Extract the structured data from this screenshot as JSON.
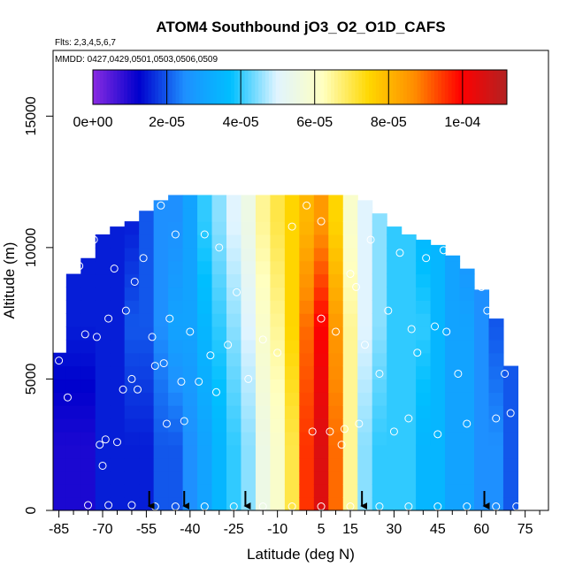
{
  "chart_data": {
    "type": "heatmap",
    "title": "ATOM4 Southbound jO3_O2_O1D_CAFS",
    "subtitle_flights": "Flts: 2,3,4,5,6,7",
    "subtitle_dates": "MMDD: 0427,0429,0501,0503,0506,0509",
    "xlabel": "Latitude (deg N)",
    "ylabel": "Altitude (m)",
    "xlim": [
      -87,
      83
    ],
    "ylim": [
      0,
      17500
    ],
    "x_ticks": [
      -85,
      -70,
      -55,
      -40,
      -25,
      -10,
      5,
      15,
      30,
      45,
      60,
      75
    ],
    "x_tick_labels": [
      "-85",
      "-70",
      "-55",
      "-40",
      "-25",
      "-10",
      "5",
      "15",
      "30",
      "45",
      "60",
      "75"
    ],
    "x_minor_ticks": [
      -80,
      -75,
      -65,
      -60,
      -50,
      -45,
      -35,
      -30,
      -20,
      -15,
      -5,
      0,
      10,
      20,
      25,
      35,
      40,
      50,
      55,
      65,
      70,
      80
    ],
    "y_ticks": [
      0,
      5000,
      10000,
      15000
    ],
    "y_tick_labels": [
      "0",
      "5000",
      "10000",
      "15000"
    ],
    "colorbar": {
      "min": 0,
      "max": 0.000112,
      "tick_values": [
        0,
        2e-05,
        4e-05,
        6e-05,
        8e-05,
        0.0001
      ],
      "tick_labels": [
        "0e+00",
        "2e-05",
        "4e-05",
        "6e-05",
        "8e-05",
        "1e-04"
      ],
      "colors": [
        "#8a2be2",
        "#0000cd",
        "#1e90ff",
        "#00bfff",
        "#e0f4ff",
        "#ffffc0",
        "#ffd700",
        "#ff8c00",
        "#ff0000",
        "#b22222"
      ]
    },
    "field": {
      "lat_columns": [
        -85,
        -80,
        -75,
        -70,
        -65,
        -60,
        -55,
        -50,
        -45,
        -40,
        -35,
        -30,
        -25,
        -20,
        -15,
        -10,
        -5,
        0,
        5,
        10,
        15,
        20,
        25,
        30,
        35,
        40,
        45,
        50,
        55,
        60,
        65,
        70
      ],
      "top_altitude_m": [
        6000,
        9000,
        9600,
        10500,
        10800,
        11000,
        11400,
        11800,
        12000,
        12000,
        12000,
        12000,
        12000,
        12000,
        12000,
        12000,
        12000,
        12000,
        12000,
        12000,
        12000,
        11800,
        11300,
        10800,
        10500,
        10300,
        10100,
        9700,
        9200,
        8400,
        7300,
        5500
      ],
      "value_profile_1e-5": [
        [
          1.0,
          1.5,
          1.5
        ],
        [
          1.0,
          1.5,
          1.5
        ],
        [
          1.0,
          1.5,
          1.5
        ],
        [
          1.5,
          1.5,
          1.5
        ],
        [
          1.5,
          1.5,
          1.5
        ],
        [
          1.5,
          2.0,
          1.5
        ],
        [
          1.5,
          2.0,
          2.0
        ],
        [
          2.0,
          2.5,
          2.5
        ],
        [
          2.0,
          3.0,
          2.5
        ],
        [
          2.5,
          3.0,
          3.0
        ],
        [
          3.0,
          3.5,
          4.0
        ],
        [
          3.5,
          4.0,
          4.5
        ],
        [
          4.0,
          4.5,
          5.0
        ],
        [
          4.5,
          5.0,
          5.5
        ],
        [
          5.5,
          6.0,
          6.5
        ],
        [
          6.0,
          6.5,
          7.0
        ],
        [
          7.0,
          7.5,
          7.5
        ],
        [
          9.5,
          9.0,
          8.0
        ],
        [
          10.5,
          10.0,
          8.5
        ],
        [
          9.0,
          8.5,
          7.5
        ],
        [
          6.5,
          6.5,
          6.0
        ],
        [
          4.5,
          5.0,
          5.0
        ],
        [
          4.0,
          4.5,
          4.5
        ],
        [
          4.0,
          4.0,
          4.0
        ],
        [
          4.0,
          4.0,
          4.0
        ],
        [
          3.5,
          4.0,
          3.5
        ],
        [
          3.5,
          3.5,
          3.5
        ],
        [
          3.0,
          3.0,
          3.0
        ],
        [
          3.0,
          3.0,
          2.5
        ],
        [
          2.5,
          2.5,
          2.5
        ],
        [
          2.5,
          2.0,
          2.0
        ],
        [
          2.0,
          2.0,
          2.0
        ]
      ],
      "profile_altitudes_m": [
        2500,
        7000,
        11000
      ]
    },
    "flight_points": [
      {
        "lat": -85,
        "alt": 5700
      },
      {
        "lat": -82,
        "alt": 4300
      },
      {
        "lat": -78,
        "alt": 9300
      },
      {
        "lat": -76,
        "alt": 6700
      },
      {
        "lat": -73,
        "alt": 10300
      },
      {
        "lat": -72,
        "alt": 6600
      },
      {
        "lat": -71,
        "alt": 2500
      },
      {
        "lat": -70,
        "alt": 1700
      },
      {
        "lat": -69,
        "alt": 2700
      },
      {
        "lat": -68,
        "alt": 7300
      },
      {
        "lat": -66,
        "alt": 9200
      },
      {
        "lat": -65,
        "alt": 2600
      },
      {
        "lat": -63,
        "alt": 4600
      },
      {
        "lat": -62,
        "alt": 7600
      },
      {
        "lat": -60,
        "alt": 5000
      },
      {
        "lat": -59,
        "alt": 8700
      },
      {
        "lat": -58,
        "alt": 4600
      },
      {
        "lat": -56,
        "alt": 9600
      },
      {
        "lat": -53,
        "alt": 6600
      },
      {
        "lat": -52,
        "alt": 5500
      },
      {
        "lat": -50,
        "alt": 11600
      },
      {
        "lat": -49,
        "alt": 5600
      },
      {
        "lat": -48,
        "alt": 3300
      },
      {
        "lat": -47,
        "alt": 7300
      },
      {
        "lat": -45,
        "alt": 10500
      },
      {
        "lat": -43,
        "alt": 4900
      },
      {
        "lat": -42,
        "alt": 3400
      },
      {
        "lat": -40,
        "alt": 6800
      },
      {
        "lat": -37,
        "alt": 4900
      },
      {
        "lat": -35,
        "alt": 10500
      },
      {
        "lat": -33,
        "alt": 5900
      },
      {
        "lat": -31,
        "alt": 4500
      },
      {
        "lat": -30,
        "alt": 10000
      },
      {
        "lat": -27,
        "alt": 6300
      },
      {
        "lat": -24,
        "alt": 8300
      },
      {
        "lat": -20,
        "alt": 5000
      },
      {
        "lat": -15,
        "alt": 6500
      },
      {
        "lat": -10,
        "alt": 6000
      },
      {
        "lat": -5,
        "alt": 10800
      },
      {
        "lat": 0,
        "alt": 11600
      },
      {
        "lat": 2,
        "alt": 3000
      },
      {
        "lat": 5,
        "alt": 11000
      },
      {
        "lat": 5,
        "alt": 7300
      },
      {
        "lat": 8,
        "alt": 3000
      },
      {
        "lat": 10,
        "alt": 6800
      },
      {
        "lat": 12,
        "alt": 2500
      },
      {
        "lat": 13,
        "alt": 3100
      },
      {
        "lat": 15,
        "alt": 9000
      },
      {
        "lat": 17,
        "alt": 8500
      },
      {
        "lat": 18,
        "alt": 3300
      },
      {
        "lat": 20,
        "alt": 6300
      },
      {
        "lat": 22,
        "alt": 10300
      },
      {
        "lat": 25,
        "alt": 5200
      },
      {
        "lat": 28,
        "alt": 7600
      },
      {
        "lat": 30,
        "alt": 3000
      },
      {
        "lat": 32,
        "alt": 9800
      },
      {
        "lat": 35,
        "alt": 3500
      },
      {
        "lat": 36,
        "alt": 6900
      },
      {
        "lat": 38,
        "alt": 6000
      },
      {
        "lat": 41,
        "alt": 9600
      },
      {
        "lat": 44,
        "alt": 7000
      },
      {
        "lat": 45,
        "alt": 2900
      },
      {
        "lat": 47,
        "alt": 9900
      },
      {
        "lat": 48,
        "alt": 6800
      },
      {
        "lat": 52,
        "alt": 5200
      },
      {
        "lat": 55,
        "alt": 3300
      },
      {
        "lat": 57,
        "alt": 9600
      },
      {
        "lat": 60,
        "alt": 8500
      },
      {
        "lat": 62,
        "alt": 7600
      },
      {
        "lat": 65,
        "alt": 3500
      },
      {
        "lat": 68,
        "alt": 5200
      },
      {
        "lat": 70,
        "alt": 3700
      },
      {
        "lat": -75,
        "alt": 200
      },
      {
        "lat": -68,
        "alt": 200
      },
      {
        "lat": -60,
        "alt": 200
      },
      {
        "lat": -52,
        "alt": 150
      },
      {
        "lat": -45,
        "alt": 150
      },
      {
        "lat": -35,
        "alt": 150
      },
      {
        "lat": -25,
        "alt": 150
      },
      {
        "lat": -15,
        "alt": 150
      },
      {
        "lat": -5,
        "alt": 150
      },
      {
        "lat": 5,
        "alt": 150
      },
      {
        "lat": 15,
        "alt": 150
      },
      {
        "lat": 25,
        "alt": 150
      },
      {
        "lat": 35,
        "alt": 150
      },
      {
        "lat": 45,
        "alt": 150
      },
      {
        "lat": 55,
        "alt": 150
      },
      {
        "lat": 65,
        "alt": 150
      },
      {
        "lat": 72,
        "alt": 150
      }
    ],
    "sounding_arrows_lat": [
      -54,
      -42,
      -21,
      19,
      61
    ]
  }
}
